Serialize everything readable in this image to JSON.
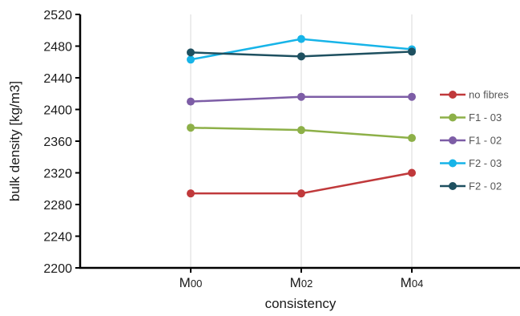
{
  "chart_data": {
    "type": "line",
    "title": "",
    "xlabel": "consistency",
    "ylabel": "bulk density [kg/m3]",
    "categories": [
      "M00",
      "M02",
      "M04"
    ],
    "category_labels": [
      {
        "main": "M",
        "sub": "00"
      },
      {
        "main": "M",
        "sub": "02"
      },
      {
        "main": "M",
        "sub": "04"
      }
    ],
    "ylim": [
      2200,
      2520
    ],
    "yticks": [
      2200,
      2240,
      2280,
      2320,
      2360,
      2400,
      2440,
      2480,
      2520
    ],
    "grid": "vertical",
    "legend_position": "right",
    "series": [
      {
        "name": "no fibres",
        "color": "#C0393B",
        "values": [
          2294,
          2294,
          2320
        ]
      },
      {
        "name": "F1 - 03",
        "color": "#8DB048",
        "values": [
          2377,
          2374,
          2364
        ]
      },
      {
        "name": "F1 - 02",
        "color": "#7D5DA6",
        "values": [
          2410,
          2416,
          2416
        ]
      },
      {
        "name": "F2 - 03",
        "color": "#17B4E8",
        "values": [
          2463,
          2489,
          2476
        ]
      },
      {
        "name": "F2 - 02",
        "color": "#1E5060",
        "values": [
          2472,
          2467,
          2473
        ]
      }
    ]
  }
}
